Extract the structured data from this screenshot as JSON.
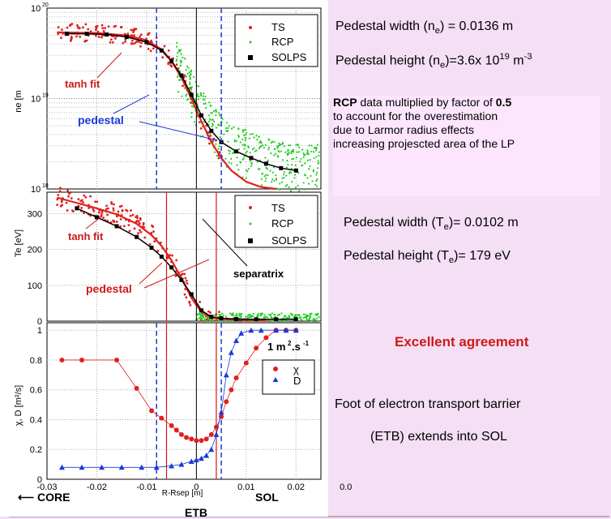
{
  "colors": {
    "ts": "#e02020",
    "rcp": "#22cc22",
    "solps": "#000000",
    "chi": "#e02020",
    "d": "#1a3ad8",
    "pedestal_blue": "#1a3ad8",
    "pedestal_red": "#d01818",
    "bg": "#f5dff5"
  },
  "text": {
    "ne_width": "Pedestal width (n",
    "ne_width_sub": "e",
    "ne_width_val": ") = 0.0136 m",
    "ne_height": "Pedestal height (n",
    "ne_height_sub": "e",
    "ne_height_val": ")=3.6x 10",
    "ne_height_sup": "19",
    "ne_height_unit": " m",
    "ne_height_unit_sup": "-3",
    "rcp_bold": "RCP",
    "rcp_mid": " data multiplied by factor of ",
    "rcp_factor": "0.5",
    "rcp_line2": "to account for the overestimation",
    "rcp_line3": "due to Larmor radius effects",
    "rcp_line4": "increasing projescted area of the LP",
    "te_width": "Pedestal width (T",
    "te_width_sub": "e",
    "te_width_val": ")= 0.0102 m",
    "te_height": "Pedestal height (T",
    "te_height_sub": "e",
    "te_height_val": ")= 179 eV",
    "agreement": "Excellent agreement",
    "foot1": "Foot of electron transport barrier",
    "foot2": "(ETB) extends into SOL",
    "core": "CORE",
    "sol": "SOL",
    "etb": "ETB",
    "tanh1": "tanh fit",
    "tanh2": "tanh fit",
    "ped1": "pedestal",
    "ped2": "pedestal",
    "separatrix": "separatrix",
    "unit_label": "1 m",
    "unit_sup": "2",
    "unit_rest": ".s",
    "unit_sup2": "-1"
  },
  "chart_data": [
    {
      "type": "scatter",
      "panel": "ne",
      "ylabel": "ne [m-3]",
      "yscale": "log",
      "ylim": [
        1e+18,
        1e+20
      ],
      "ytick_labels": [
        "10^18",
        "10^19",
        "10^20"
      ],
      "legend": [
        "TS",
        "RCP",
        "SOLPS"
      ],
      "series": [
        {
          "name": "SOLPS",
          "x": [
            -0.026,
            -0.022,
            -0.018,
            -0.014,
            -0.01,
            -0.007,
            -0.005,
            -0.003,
            -0.001,
            0.001,
            0.003,
            0.005,
            0.008,
            0.011,
            0.014,
            0.017,
            0.02
          ],
          "values": [
            5.2e+19,
            5.2e+19,
            5.1e+19,
            4.8e+19,
            4.2e+19,
            3.4e+19,
            2.6e+19,
            1.8e+19,
            1.1e+19,
            6.5e+18,
            4.4e+18,
            3.3e+18,
            2.6e+18,
            2.2e+18,
            1.9e+18,
            1.7e+18,
            1.6e+18
          ]
        },
        {
          "name": "tanh fit",
          "x": [
            -0.028,
            -0.02,
            -0.014,
            -0.01,
            -0.007,
            -0.005,
            -0.003,
            -0.001,
            0.001,
            0.003,
            0.005,
            0.007,
            0.01,
            0.013,
            0.016
          ],
          "values": [
            5.4e+19,
            5.3e+19,
            5e+19,
            4.4e+19,
            3.5e+19,
            2.6e+19,
            1.7e+19,
            1e+19,
            5.6e+18,
            3.3e+18,
            2.2e+18,
            1.6e+18,
            1.2e+18,
            1.05e+18,
            1e+18
          ]
        }
      ]
    },
    {
      "type": "scatter",
      "panel": "Te",
      "ylabel": "Te [eV]",
      "ylim": [
        0,
        360
      ],
      "ytick_labels": [
        "0",
        "100",
        "200",
        "300"
      ],
      "legend": [
        "TS",
        "RCP",
        "SOLPS"
      ],
      "series": [
        {
          "name": "SOLPS",
          "x": [
            -0.024,
            -0.02,
            -0.016,
            -0.012,
            -0.009,
            -0.007,
            -0.005,
            -0.003,
            -0.001,
            0.001,
            0.003,
            0.005,
            0.008,
            0.012,
            0.016,
            0.02
          ],
          "values": [
            315,
            290,
            265,
            235,
            205,
            180,
            150,
            115,
            75,
            30,
            12,
            8,
            6,
            5,
            5,
            5
          ]
        },
        {
          "name": "tanh fit",
          "x": [
            -0.028,
            -0.024,
            -0.02,
            -0.016,
            -0.012,
            -0.009,
            -0.007,
            -0.005,
            -0.003,
            -0.001,
            0.001,
            0.003,
            0.006,
            0.01,
            0.014
          ],
          "values": [
            345,
            330,
            315,
            298,
            272,
            240,
            210,
            170,
            120,
            65,
            25,
            10,
            5,
            3,
            2
          ]
        }
      ]
    },
    {
      "type": "line",
      "panel": "chi_D",
      "ylabel": "χ, D [m²/s]",
      "xlabel": "R-Rsep [m]",
      "xlim": [
        -0.03,
        0.03
      ],
      "ylim": [
        0,
        1.05
      ],
      "xtick_labels": [
        "-0.03",
        "-0.02",
        "-0.01",
        "0",
        "0.01",
        "0.02",
        "0.0"
      ],
      "ytick_labels": [
        "0",
        "0.2",
        "0.4",
        "0.6",
        "0.8",
        "1"
      ],
      "legend": [
        "χ",
        "D"
      ],
      "series": [
        {
          "name": "χ",
          "x": [
            -0.027,
            -0.023,
            -0.016,
            -0.012,
            -0.009,
            -0.007,
            -0.005,
            -0.004,
            -0.003,
            -0.002,
            -0.001,
            0.0,
            0.001,
            0.002,
            0.003,
            0.004,
            0.005,
            0.006,
            0.007,
            0.008,
            0.01,
            0.012,
            0.014,
            0.016,
            0.018,
            0.02
          ],
          "values": [
            0.8,
            0.8,
            0.8,
            0.61,
            0.46,
            0.41,
            0.36,
            0.33,
            0.3,
            0.28,
            0.27,
            0.26,
            0.26,
            0.27,
            0.3,
            0.35,
            0.42,
            0.52,
            0.6,
            0.68,
            0.78,
            0.88,
            0.95,
            1.0,
            1.0,
            1.0
          ]
        },
        {
          "name": "D",
          "x": [
            -0.027,
            -0.023,
            -0.019,
            -0.015,
            -0.011,
            -0.008,
            -0.005,
            -0.003,
            -0.001,
            0.0,
            0.001,
            0.002,
            0.003,
            0.004,
            0.005,
            0.006,
            0.007,
            0.008,
            0.009,
            0.011,
            0.013,
            0.016,
            0.018,
            0.02
          ],
          "values": [
            0.08,
            0.08,
            0.08,
            0.08,
            0.08,
            0.08,
            0.09,
            0.1,
            0.12,
            0.13,
            0.14,
            0.16,
            0.2,
            0.3,
            0.45,
            0.7,
            0.85,
            0.93,
            0.98,
            1.0,
            1.0,
            1.0,
            1.0,
            1.0
          ]
        }
      ]
    }
  ]
}
